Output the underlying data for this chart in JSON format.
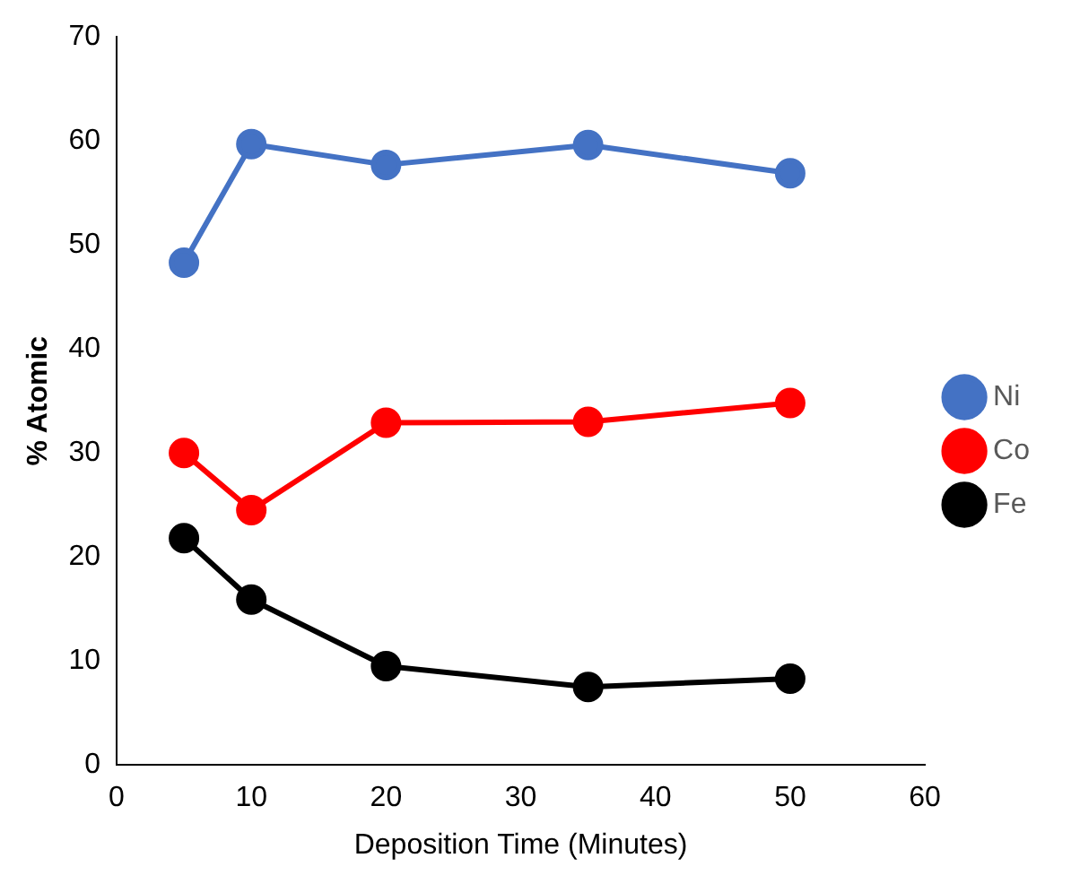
{
  "chart_data": {
    "type": "line",
    "xlabel": "Deposition Time (Minutes)",
    "ylabel": "% Atomic",
    "x": [
      5,
      10,
      20,
      35,
      50
    ],
    "series": [
      {
        "name": "Ni",
        "color": "#4472c4",
        "values": [
          48.3,
          59.7,
          57.7,
          59.6,
          56.9
        ]
      },
      {
        "name": "Co",
        "color": "#ff0000",
        "values": [
          30,
          24.5,
          32.9,
          33,
          34.8
        ]
      },
      {
        "name": "Fe",
        "color": "#000000",
        "values": [
          21.8,
          15.9,
          9.5,
          7.5,
          8.3
        ]
      }
    ],
    "xlim": [
      0,
      60
    ],
    "xticks": [
      0,
      10,
      20,
      30,
      40,
      50,
      60
    ],
    "ylim": [
      0,
      70
    ],
    "yticks": [
      0,
      10,
      20,
      30,
      40,
      50,
      60,
      70
    ],
    "grid": false,
    "legend": "right",
    "marker": "circle",
    "line_style": "solid"
  }
}
